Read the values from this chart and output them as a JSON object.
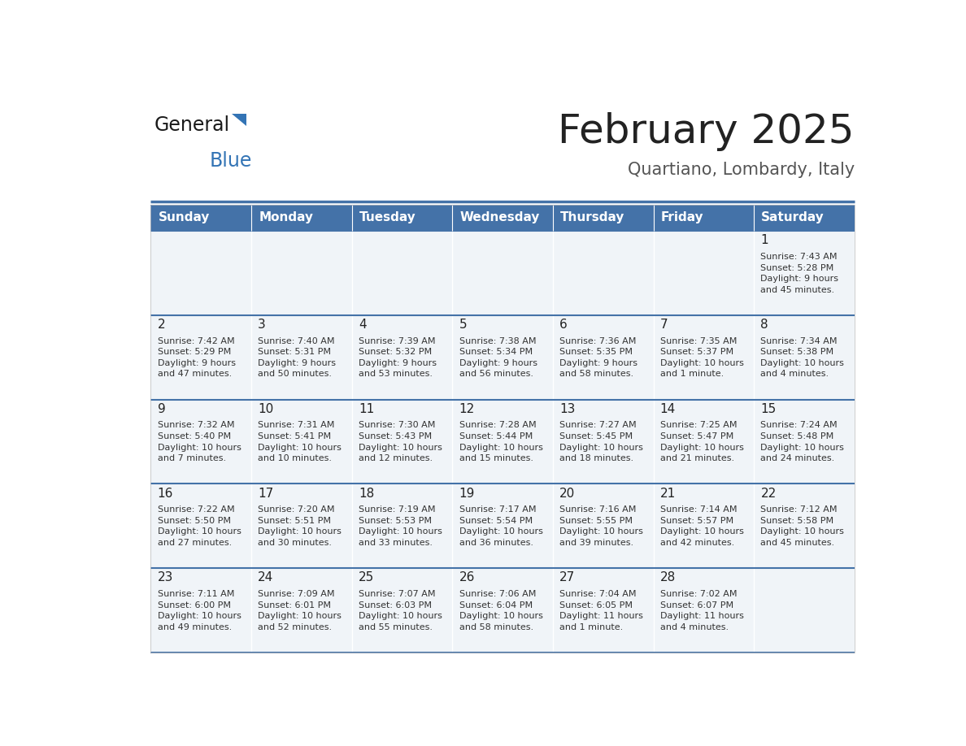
{
  "title": "February 2025",
  "subtitle": "Quartiano, Lombardy, Italy",
  "header_bg": "#4472a8",
  "header_text": "#ffffff",
  "row_bg": "#f0f4f8",
  "separator_color": "#4472a8",
  "text_color": "#333333",
  "day_headers": [
    "Sunday",
    "Monday",
    "Tuesday",
    "Wednesday",
    "Thursday",
    "Friday",
    "Saturday"
  ],
  "calendar": [
    [
      null,
      null,
      null,
      null,
      null,
      null,
      {
        "day": 1,
        "sunrise": "7:43 AM",
        "sunset": "5:28 PM",
        "daylight": "9 hours\nand 45 minutes."
      }
    ],
    [
      {
        "day": 2,
        "sunrise": "7:42 AM",
        "sunset": "5:29 PM",
        "daylight": "9 hours\nand 47 minutes."
      },
      {
        "day": 3,
        "sunrise": "7:40 AM",
        "sunset": "5:31 PM",
        "daylight": "9 hours\nand 50 minutes."
      },
      {
        "day": 4,
        "sunrise": "7:39 AM",
        "sunset": "5:32 PM",
        "daylight": "9 hours\nand 53 minutes."
      },
      {
        "day": 5,
        "sunrise": "7:38 AM",
        "sunset": "5:34 PM",
        "daylight": "9 hours\nand 56 minutes."
      },
      {
        "day": 6,
        "sunrise": "7:36 AM",
        "sunset": "5:35 PM",
        "daylight": "9 hours\nand 58 minutes."
      },
      {
        "day": 7,
        "sunrise": "7:35 AM",
        "sunset": "5:37 PM",
        "daylight": "10 hours\nand 1 minute."
      },
      {
        "day": 8,
        "sunrise": "7:34 AM",
        "sunset": "5:38 PM",
        "daylight": "10 hours\nand 4 minutes."
      }
    ],
    [
      {
        "day": 9,
        "sunrise": "7:32 AM",
        "sunset": "5:40 PM",
        "daylight": "10 hours\nand 7 minutes."
      },
      {
        "day": 10,
        "sunrise": "7:31 AM",
        "sunset": "5:41 PM",
        "daylight": "10 hours\nand 10 minutes."
      },
      {
        "day": 11,
        "sunrise": "7:30 AM",
        "sunset": "5:43 PM",
        "daylight": "10 hours\nand 12 minutes."
      },
      {
        "day": 12,
        "sunrise": "7:28 AM",
        "sunset": "5:44 PM",
        "daylight": "10 hours\nand 15 minutes."
      },
      {
        "day": 13,
        "sunrise": "7:27 AM",
        "sunset": "5:45 PM",
        "daylight": "10 hours\nand 18 minutes."
      },
      {
        "day": 14,
        "sunrise": "7:25 AM",
        "sunset": "5:47 PM",
        "daylight": "10 hours\nand 21 minutes."
      },
      {
        "day": 15,
        "sunrise": "7:24 AM",
        "sunset": "5:48 PM",
        "daylight": "10 hours\nand 24 minutes."
      }
    ],
    [
      {
        "day": 16,
        "sunrise": "7:22 AM",
        "sunset": "5:50 PM",
        "daylight": "10 hours\nand 27 minutes."
      },
      {
        "day": 17,
        "sunrise": "7:20 AM",
        "sunset": "5:51 PM",
        "daylight": "10 hours\nand 30 minutes."
      },
      {
        "day": 18,
        "sunrise": "7:19 AM",
        "sunset": "5:53 PM",
        "daylight": "10 hours\nand 33 minutes."
      },
      {
        "day": 19,
        "sunrise": "7:17 AM",
        "sunset": "5:54 PM",
        "daylight": "10 hours\nand 36 minutes."
      },
      {
        "day": 20,
        "sunrise": "7:16 AM",
        "sunset": "5:55 PM",
        "daylight": "10 hours\nand 39 minutes."
      },
      {
        "day": 21,
        "sunrise": "7:14 AM",
        "sunset": "5:57 PM",
        "daylight": "10 hours\nand 42 minutes."
      },
      {
        "day": 22,
        "sunrise": "7:12 AM",
        "sunset": "5:58 PM",
        "daylight": "10 hours\nand 45 minutes."
      }
    ],
    [
      {
        "day": 23,
        "sunrise": "7:11 AM",
        "sunset": "6:00 PM",
        "daylight": "10 hours\nand 49 minutes."
      },
      {
        "day": 24,
        "sunrise": "7:09 AM",
        "sunset": "6:01 PM",
        "daylight": "10 hours\nand 52 minutes."
      },
      {
        "day": 25,
        "sunrise": "7:07 AM",
        "sunset": "6:03 PM",
        "daylight": "10 hours\nand 55 minutes."
      },
      {
        "day": 26,
        "sunrise": "7:06 AM",
        "sunset": "6:04 PM",
        "daylight": "10 hours\nand 58 minutes."
      },
      {
        "day": 27,
        "sunrise": "7:04 AM",
        "sunset": "6:05 PM",
        "daylight": "11 hours\nand 1 minute."
      },
      {
        "day": 28,
        "sunrise": "7:02 AM",
        "sunset": "6:07 PM",
        "daylight": "11 hours\nand 4 minutes."
      },
      null
    ]
  ]
}
